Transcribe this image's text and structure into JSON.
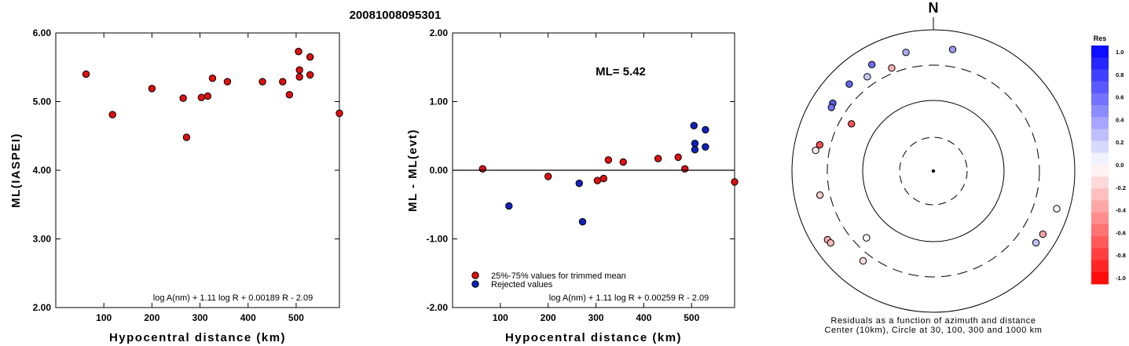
{
  "title": "20081008095301",
  "chart_data": [
    {
      "type": "scatter",
      "xlabel": "Hypocentral distance (km)",
      "ylabel": "ML(IASPEI)",
      "xlim": [
        0,
        590
      ],
      "ylim": [
        2.0,
        6.0
      ],
      "xticks": [
        100,
        200,
        300,
        400,
        500
      ],
      "yticks": [
        2.0,
        3.0,
        4.0,
        5.0,
        6.0
      ],
      "ytick_labels": [
        "2.00",
        "3.00",
        "4.00",
        "5.00",
        "6.00"
      ],
      "formula": "log A(nm) + 1.11 log R + 0.00189 R - 2.09",
      "color": "#dd1111",
      "points": [
        {
          "x": 63,
          "y": 5.4
        },
        {
          "x": 118,
          "y": 4.81
        },
        {
          "x": 200,
          "y": 5.19
        },
        {
          "x": 265,
          "y": 5.05
        },
        {
          "x": 272,
          "y": 4.48
        },
        {
          "x": 303,
          "y": 5.06
        },
        {
          "x": 316,
          "y": 5.08
        },
        {
          "x": 326,
          "y": 5.34
        },
        {
          "x": 357,
          "y": 5.29
        },
        {
          "x": 430,
          "y": 5.29
        },
        {
          "x": 472,
          "y": 5.29
        },
        {
          "x": 486,
          "y": 5.1
        },
        {
          "x": 505,
          "y": 5.73
        },
        {
          "x": 507,
          "y": 5.46
        },
        {
          "x": 507,
          "y": 5.36
        },
        {
          "x": 529,
          "y": 5.65
        },
        {
          "x": 529,
          "y": 5.39
        },
        {
          "x": 590,
          "y": 4.83
        }
      ]
    },
    {
      "type": "scatter",
      "xlabel": "Hypocentral distance (km)",
      "ylabel": "ML - ML(evt)",
      "xlim": [
        0,
        590
      ],
      "ylim": [
        -2.0,
        2.0
      ],
      "xticks": [
        100,
        200,
        300,
        400,
        500
      ],
      "yticks": [
        -2.0,
        -1.0,
        0.0,
        1.0,
        2.0
      ],
      "ytick_labels": [
        "-2.00",
        "-1.00",
        "0.00",
        "1.00",
        "2.00"
      ],
      "annotation": "ML= 5.42",
      "formula": "log A(nm) + 1.11 log R + 0.00259 R - 2.09",
      "legend": [
        {
          "label": "25%-75% values for trimmed mean",
          "color": "#dd1111"
        },
        {
          "label": "Rejected values",
          "color": "#1122bb"
        }
      ],
      "series": [
        {
          "color": "#dd1111",
          "points": [
            {
              "x": 63,
              "y": 0.02
            },
            {
              "x": 200,
              "y": -0.09
            },
            {
              "x": 303,
              "y": -0.15
            },
            {
              "x": 316,
              "y": -0.12
            },
            {
              "x": 326,
              "y": 0.15
            },
            {
              "x": 357,
              "y": 0.12
            },
            {
              "x": 430,
              "y": 0.17
            },
            {
              "x": 472,
              "y": 0.19
            },
            {
              "x": 486,
              "y": 0.02
            },
            {
              "x": 590,
              "y": -0.17
            }
          ]
        },
        {
          "color": "#1122bb",
          "points": [
            {
              "x": 118,
              "y": -0.52
            },
            {
              "x": 265,
              "y": -0.19
            },
            {
              "x": 272,
              "y": -0.75
            },
            {
              "x": 505,
              "y": 0.65
            },
            {
              "x": 507,
              "y": 0.39
            },
            {
              "x": 507,
              "y": 0.3
            },
            {
              "x": 529,
              "y": 0.59
            },
            {
              "x": 529,
              "y": 0.34
            }
          ]
        }
      ]
    },
    {
      "type": "polar",
      "north_label": "N",
      "caption_line1": "Residuals as a function of azimuth and distance",
      "caption_line2": "Center (10km), Circle at 30, 100, 300 and 1000 km",
      "colorbar_title": "Res",
      "colorbar_ticks": [
        "1.0",
        "0.8",
        "0.6",
        "0.4",
        "0.2",
        "0.0",
        "-0.2",
        "-0.4",
        "-0.6",
        "-0.8",
        "-1.0"
      ],
      "points": [
        {
          "azimuth": 304,
          "distance": 505,
          "res": 0.65,
          "color": "#5a5ae6"
        },
        {
          "azimuth": 302,
          "distance": 486,
          "res": 0.55,
          "color": "#7070ee"
        },
        {
          "azimuth": 316,
          "distance": 500,
          "res": 0.6,
          "color": "#6464ea"
        },
        {
          "azimuth": 330,
          "distance": 535,
          "res": 0.59,
          "color": "#6c6cec"
        },
        {
          "azimuth": 325,
          "distance": 410,
          "res": 0.3,
          "color": "#c8c8f8"
        },
        {
          "azimuth": 338,
          "distance": 358,
          "res": -0.25,
          "color": "#f5b0b0"
        },
        {
          "azimuth": 347,
          "distance": 515,
          "res": 0.35,
          "color": "#aaaaf5"
        },
        {
          "azimuth": 9,
          "distance": 538,
          "res": 0.45,
          "color": "#9c9cf2"
        },
        {
          "azimuth": 283,
          "distance": 430,
          "res": -0.75,
          "color": "#ee5050"
        },
        {
          "azimuth": 280,
          "distance": 475,
          "res": -0.08,
          "color": "#fde8e8"
        },
        {
          "azimuth": 300,
          "distance": 210,
          "res": -0.7,
          "color": "#ee5555"
        },
        {
          "azimuth": 258,
          "distance": 420,
          "res": -0.2,
          "color": "#f9cccc"
        },
        {
          "azimuth": 237,
          "distance": 595,
          "res": -0.4,
          "color": "#f4a5a5"
        },
        {
          "azimuth": 235,
          "distance": 580,
          "res": -0.3,
          "color": "#f7bcbc"
        },
        {
          "azimuth": 218,
          "distance": 395,
          "res": -0.15,
          "color": "#fce0e0"
        },
        {
          "azimuth": 225,
          "distance": 210,
          "res": 0.0,
          "color": "#ffffff"
        },
        {
          "azimuth": 120,
          "distance": 600,
          "res": -0.45,
          "color": "#f4a5a5"
        },
        {
          "azimuth": 125,
          "distance": 575,
          "res": 0.3,
          "color": "#c2c2f6"
        },
        {
          "azimuth": 107,
          "distance": 655,
          "res": 0.02,
          "color": "#fafafa"
        }
      ]
    }
  ]
}
